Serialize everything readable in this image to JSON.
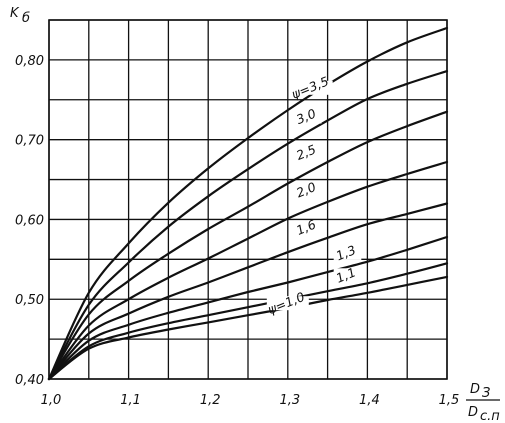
{
  "chart_data": {
    "type": "line",
    "title": "",
    "ylabel": "K_б",
    "xlabel": "D_З / D_с.п",
    "ylabel_main": "K",
    "ylabel_sub": "б",
    "xlabel_num_main": "D",
    "xlabel_num_sub": "З",
    "xlabel_den_main": "D",
    "xlabel_den_sub": "с.п",
    "xlim": [
      1.0,
      1.5
    ],
    "ylim": [
      0.4,
      0.85
    ],
    "x_ticks": [
      {
        "value": 1.0,
        "label": "1,0"
      },
      {
        "value": 1.1,
        "label": "1,1"
      },
      {
        "value": 1.2,
        "label": "1,2"
      },
      {
        "value": 1.3,
        "label": "1,3"
      },
      {
        "value": 1.4,
        "label": "1,4"
      },
      {
        "value": 1.5,
        "label": "1,5"
      }
    ],
    "y_ticks": [
      {
        "value": 0.4,
        "label": "0,40"
      },
      {
        "value": 0.5,
        "label": "0,50"
      },
      {
        "value": 0.6,
        "label": "0,60"
      },
      {
        "value": 0.7,
        "label": "0,70"
      },
      {
        "value": 0.8,
        "label": "0,80"
      }
    ],
    "x_grid": [
      1.0,
      1.05,
      1.1,
      1.15,
      1.2,
      1.25,
      1.3,
      1.35,
      1.4,
      1.45,
      1.5
    ],
    "y_grid": [
      0.4,
      0.45,
      0.5,
      0.55,
      0.6,
      0.65,
      0.7,
      0.75,
      0.8,
      0.85
    ],
    "grid": true,
    "legend": "none",
    "x": [
      1.0,
      1.05,
      1.1,
      1.15,
      1.2,
      1.25,
      1.3,
      1.35,
      1.4,
      1.45,
      1.5
    ],
    "series": [
      {
        "name": "ψ=1,0",
        "label": "ψ=1,0",
        "label_at": [
          1.3,
          0.49
        ],
        "values": [
          0.4,
          0.438,
          0.452,
          0.462,
          0.471,
          0.48,
          0.489,
          0.499,
          0.508,
          0.518,
          0.528
        ]
      },
      {
        "name": "1,1",
        "label": "1,1",
        "label_at": [
          1.375,
          0.525
        ],
        "values": [
          0.4,
          0.441,
          0.458,
          0.47,
          0.48,
          0.49,
          0.5,
          0.51,
          0.52,
          0.532,
          0.545
        ]
      },
      {
        "name": "1,3",
        "label": "1,3",
        "label_at": [
          1.375,
          0.553
        ],
        "values": [
          0.4,
          0.448,
          0.468,
          0.483,
          0.496,
          0.509,
          0.521,
          0.534,
          0.547,
          0.562,
          0.578
        ]
      },
      {
        "name": "1,6",
        "label": "1,6",
        "label_at": [
          1.325,
          0.585
        ],
        "values": [
          0.4,
          0.457,
          0.482,
          0.503,
          0.521,
          0.54,
          0.559,
          0.577,
          0.594,
          0.607,
          0.62
        ]
      },
      {
        "name": "2,0",
        "label": "2,0",
        "label_at": [
          1.325,
          0.632
        ],
        "values": [
          0.4,
          0.467,
          0.5,
          0.527,
          0.551,
          0.576,
          0.601,
          0.622,
          0.641,
          0.657,
          0.672
        ]
      },
      {
        "name": "2,5",
        "label": "2,5",
        "label_at": [
          1.325,
          0.679
        ],
        "values": [
          0.4,
          0.481,
          0.523,
          0.557,
          0.588,
          0.616,
          0.645,
          0.672,
          0.697,
          0.717,
          0.735
        ]
      },
      {
        "name": "3,0",
        "label": "3,0",
        "label_at": [
          1.325,
          0.724
        ],
        "values": [
          0.4,
          0.493,
          0.546,
          0.591,
          0.629,
          0.663,
          0.695,
          0.724,
          0.751,
          0.77,
          0.786
        ]
      },
      {
        "name": "ψ=3,5",
        "label": "ψ=3,5",
        "label_at": [
          1.33,
          0.76
        ],
        "values": [
          0.4,
          0.508,
          0.57,
          0.621,
          0.664,
          0.702,
          0.737,
          0.769,
          0.798,
          0.822,
          0.84
        ]
      }
    ]
  }
}
